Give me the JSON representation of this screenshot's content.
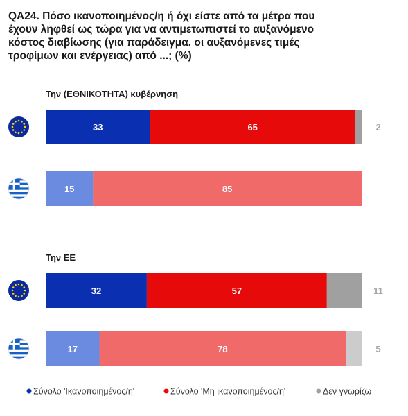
{
  "title": "QA24. Πόσο ικανοποιημένος/η ή όχι είστε από τα μέτρα που έχουν ληφθεί ως τώρα για να αντιμετωπιστεί το αυξανόμενο κόστος διαβίωσης (για παράδειγμα. οι αυξανόμενες τιμές τροφίμων και ενέργειας) από ...; (%)",
  "title_lines": [
    "QA24. Πόσο ικανοποιημένος/η ή όχι είστε από τα μέτρα που",
    "έχουν ληφθεί ως τώρα για να αντιμετωπιστεί το αυξανόμενο",
    "κόστος διαβίωσης (για παράδειγμα. οι αυξανόμενες τιμές",
    "τροφίμων και ενέργειας) από ...; (%)"
  ],
  "legend": [
    {
      "label": "Σύνολο 'Ικανοποιημένος/η'",
      "color": "#0a2fb0"
    },
    {
      "label": "Σύνολο 'Μη ικανοποιημένος/η'",
      "color": "#e60a0a"
    },
    {
      "label": "Δεν γνωρίζω",
      "color": "#a0a0a0"
    }
  ],
  "flag_icons": {
    "eu": "eu-flag-icon",
    "greece": "greece-flag-icon"
  },
  "colors": {
    "eu_satisfied": "#0a2fb0",
    "eu_dissatisfied": "#e60a0a",
    "eu_dont_know": "#a0a0a0",
    "gr_satisfied": "#6a8be0",
    "gr_dissatisfied": "#f06a6a",
    "gr_dont_know": "#cccccc"
  },
  "chart_data": {
    "type": "bar",
    "orientation": "horizontal",
    "stacked": true,
    "xlim": [
      0,
      100
    ],
    "series_names": [
      "Σύνολο 'Ικανοποιημένος/η'",
      "Σύνολο 'Μη ικανοποιημένος/η'",
      "Δεν γνωρίζω"
    ],
    "groups": [
      {
        "label": "Την (ΕΘΝΙΚΟΤΗΤΑ) κυβέρνηση",
        "bars": [
          {
            "flag": "eu",
            "values": [
              33,
              65,
              2
            ]
          },
          {
            "flag": "greece",
            "values": [
              15,
              85,
              0
            ]
          }
        ]
      },
      {
        "label": "Την ΕΕ",
        "bars": [
          {
            "flag": "eu",
            "values": [
              32,
              57,
              11
            ]
          },
          {
            "flag": "greece",
            "values": [
              17,
              78,
              5
            ]
          }
        ]
      }
    ]
  }
}
